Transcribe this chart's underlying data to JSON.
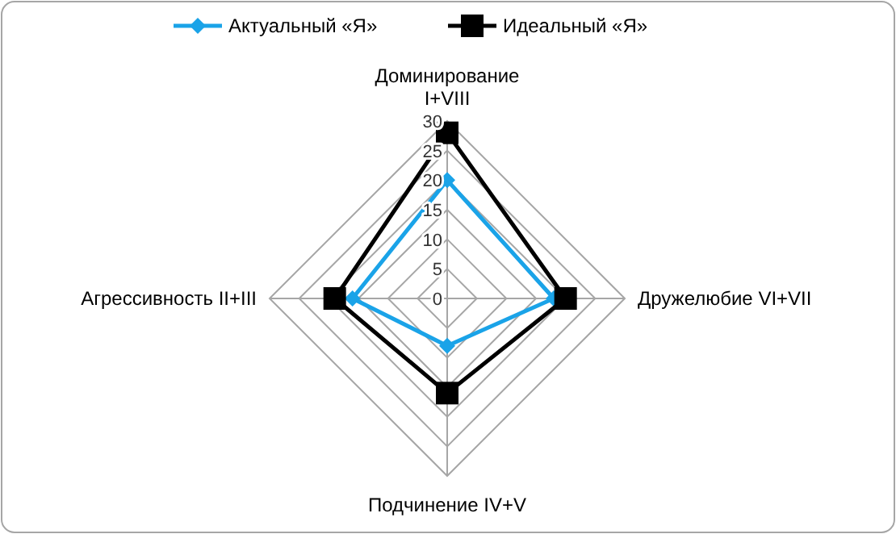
{
  "chart_data": {
    "type": "radar",
    "categories": [
      "Доминирование I+VIII",
      "Дружелюбие VI+VII",
      "Подчинение IV+V",
      "Агрессивность II+III"
    ],
    "series": [
      {
        "name": "Актуальный «Я»",
        "color": "#1aa3e8",
        "values": [
          20,
          18,
          8,
          16
        ],
        "marker": "diamond"
      },
      {
        "name": "Идеальный «Я»",
        "color": "#000000",
        "values": [
          28,
          20,
          16,
          19
        ],
        "marker": "square"
      }
    ],
    "ylim": [
      0,
      30
    ],
    "yticks": [
      0,
      5,
      10,
      15,
      20,
      25,
      30
    ],
    "grid": true,
    "legend": "top"
  }
}
